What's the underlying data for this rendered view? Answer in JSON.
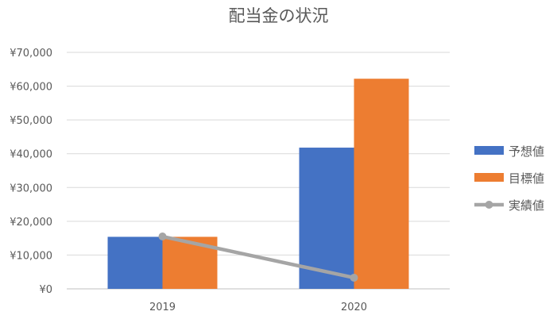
{
  "chart_data": {
    "type": "bar",
    "title": "配当金の状況",
    "xlabel": "",
    "ylabel": "",
    "categories": [
      "2019",
      "2020"
    ],
    "ylim": [
      0,
      70000
    ],
    "yticks": [
      "¥0",
      "¥10,000",
      "¥20,000",
      "¥30,000",
      "¥40,000",
      "¥50,000",
      "¥60,000",
      "¥70,000"
    ],
    "ytick_values": [
      0,
      10000,
      20000,
      30000,
      40000,
      50000,
      60000,
      70000
    ],
    "grid": true,
    "legend_position": "right",
    "series": [
      {
        "name": "予想値",
        "kind": "bar",
        "color": "#4472C4",
        "values": [
          15400,
          41800
        ]
      },
      {
        "name": "目標値",
        "kind": "bar",
        "color": "#ED7D31",
        "values": [
          15400,
          62200
        ]
      },
      {
        "name": "実績値",
        "kind": "line",
        "color": "#A5A5A5",
        "values": [
          15500,
          3300
        ]
      }
    ]
  }
}
